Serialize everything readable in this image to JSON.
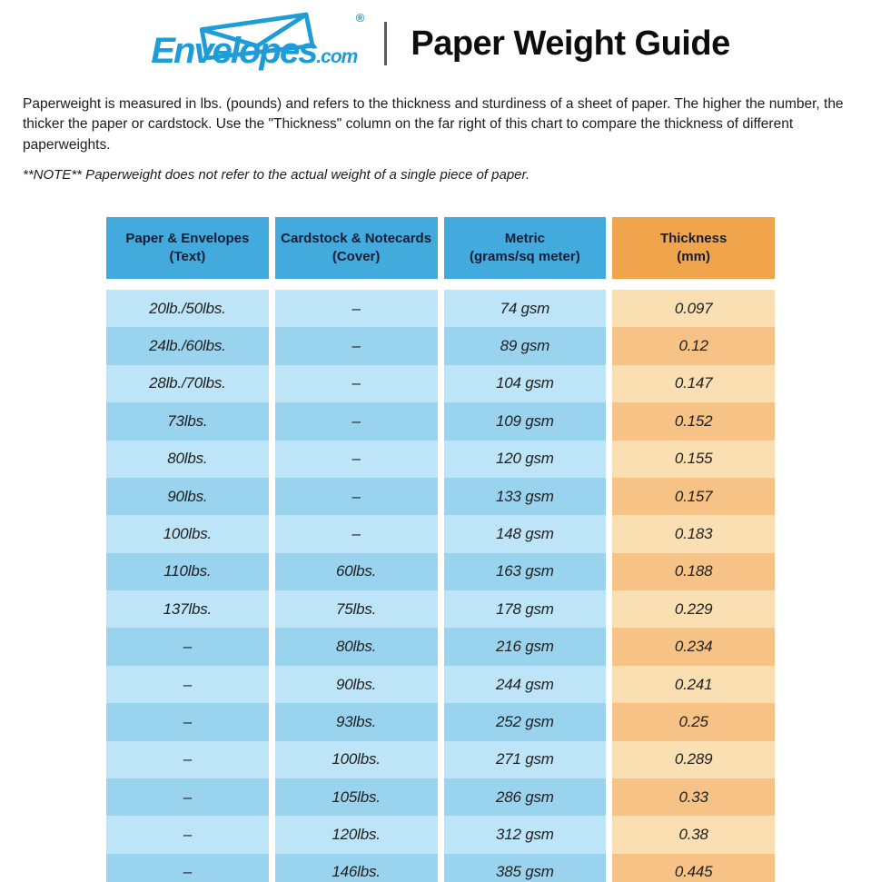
{
  "brand": {
    "logo_text": "Envelopes",
    "logo_suffix": ".com",
    "registered_mark": "®",
    "title": "Paper Weight Guide",
    "logo_color": "#1e9cd7"
  },
  "intro": {
    "paragraph": "Paperweight is measured in lbs. (pounds) and refers to the thickness and sturdiness of a sheet of paper. The higher the number, the thicker the paper or cardstock. Use the \"Thickness\" column on the far right of this chart to compare the thickness of different paperweights.",
    "note": "**NOTE** Paperweight does not refer to the actual weight of a single piece of paper."
  },
  "chart_data": {
    "type": "table",
    "title": "Paper Weight Guide",
    "columns": [
      "Paper & Envelopes\n(Text)",
      "Cardstock & Notecards\n(Cover)",
      "Metric\n(grams/sq meter)",
      "Thickness\n(mm)"
    ],
    "rows": [
      [
        "20lb./50lbs.",
        "–",
        "74 gsm",
        "0.097"
      ],
      [
        "24lb./60lbs.",
        "–",
        "89 gsm",
        "0.12"
      ],
      [
        "28lb./70lbs.",
        "–",
        "104 gsm",
        "0.147"
      ],
      [
        "73lbs.",
        "–",
        "109 gsm",
        "0.152"
      ],
      [
        "80lbs.",
        "–",
        "120 gsm",
        "0.155"
      ],
      [
        "90lbs.",
        "–",
        "133 gsm",
        "0.157"
      ],
      [
        "100lbs.",
        "–",
        "148 gsm",
        "0.183"
      ],
      [
        "110lbs.",
        "60lbs.",
        "163 gsm",
        "0.188"
      ],
      [
        "137lbs.",
        "75lbs.",
        "178 gsm",
        "0.229"
      ],
      [
        "–",
        "80lbs.",
        "216 gsm",
        "0.234"
      ],
      [
        "–",
        "90lbs.",
        "244 gsm",
        "0.241"
      ],
      [
        "–",
        "93lbs.",
        "252 gsm",
        "0.25"
      ],
      [
        "–",
        "100lbs.",
        "271 gsm",
        "0.289"
      ],
      [
        "–",
        "105lbs.",
        "286 gsm",
        "0.33"
      ],
      [
        "–",
        "120lbs.",
        "312 gsm",
        "0.38"
      ],
      [
        "–",
        "146lbs.",
        "385 gsm",
        "0.445"
      ]
    ],
    "layout": {
      "header_row_separated": true,
      "alternating_rows": "light/dark starting light",
      "thickness_column_accent": "orange"
    }
  },
  "colors": {
    "logo_blue": "#1e9cd7",
    "header_blue": "#43aadd",
    "header_orange": "#f0a44c",
    "row_blue_light": "#bee5f7",
    "row_blue_dark": "#9ad3ee",
    "thickness_light": "#fadfb2",
    "thickness_dark": "#f6c285",
    "header_text": "#151d35",
    "body_text": "#1c1c1c"
  }
}
